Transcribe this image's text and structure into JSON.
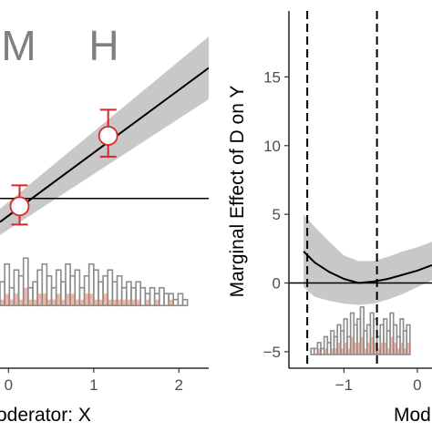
{
  "colors": {
    "line": "#000000",
    "band": "#bebebe",
    "bin_point": "#d62828",
    "histogram_outline": "#8c8c8c",
    "histogram_fill_treated": "#f4b5a2",
    "text_bin_label": "#808080"
  },
  "chart_data": [
    {
      "type": "line",
      "panel": "left",
      "xlabel": "oderator: X",
      "ylabel": "",
      "xlim": [
        -0.1,
        2.35
      ],
      "ylim": [
        -6.5,
        7.6
      ],
      "x_ticks": [
        0,
        1,
        2
      ],
      "x_tick_labels": [
        "0",
        "1",
        "2"
      ],
      "bin_labels": [
        "M",
        "H"
      ],
      "bin_label_x": [
        0.12,
        1.12
      ],
      "series": [
        {
          "role": "fitted-line",
          "x": [
            -0.1,
            2.35
          ],
          "y": [
            -0.9,
            5.0
          ],
          "band_lower": [
            -1.4,
            3.8
          ],
          "band_upper": [
            -0.4,
            6.2
          ]
        }
      ],
      "points": [
        {
          "x": 0.13,
          "y": -0.3,
          "lower": -1.0,
          "upper": 0.5
        },
        {
          "x": 1.17,
          "y": 2.4,
          "lower": 1.6,
          "upper": 3.4
        }
      ],
      "hline_y": 0,
      "histogram": {
        "base_y": -4.1,
        "bin_width": 0.055,
        "total_counts": [
          4,
          7,
          3,
          6,
          5,
          8,
          3,
          4,
          6,
          7,
          5,
          3,
          6,
          4,
          7,
          5,
          6,
          3,
          5,
          7,
          6,
          4,
          5,
          6,
          4,
          5,
          3,
          4,
          3,
          4,
          3,
          2,
          3,
          2,
          3,
          2,
          2,
          1,
          2,
          1
        ],
        "treated_counts": [
          1,
          2,
          1,
          2,
          1,
          3,
          1,
          1,
          2,
          2,
          1,
          1,
          2,
          1,
          2,
          2,
          1,
          1,
          2,
          2,
          1,
          1,
          2,
          1,
          1,
          1,
          1,
          1,
          1,
          1,
          0,
          1,
          0,
          1,
          0,
          0,
          1,
          0,
          0,
          0
        ]
      }
    },
    {
      "type": "line",
      "panel": "right",
      "xlabel": "Mod",
      "ylabel": "Marginal Effect of D on Y",
      "xlim": [
        -1.75,
        0.2
      ],
      "ylim": [
        -6.2,
        19.8
      ],
      "x_ticks": [
        -1,
        0
      ],
      "x_tick_labels": [
        "−1",
        "0"
      ],
      "y_ticks": [
        -5,
        0,
        5,
        10,
        15
      ],
      "y_tick_labels": [
        "−5",
        "0",
        "5",
        "10",
        "15"
      ],
      "series": [
        {
          "role": "marginal-effect",
          "x": [
            -1.55,
            -1.4,
            -1.2,
            -1.0,
            -0.8,
            -0.6,
            -0.4,
            -0.2,
            0.0,
            0.2
          ],
          "y": [
            2.3,
            1.5,
            0.8,
            0.3,
            0.0,
            0.1,
            0.3,
            0.6,
            0.9,
            1.3
          ],
          "band_lower": [
            -0.3,
            -1.0,
            -1.3,
            -1.5,
            -1.6,
            -1.5,
            -1.2,
            -0.8,
            -0.3,
            0.2
          ],
          "band_upper": [
            5.0,
            4.1,
            3.0,
            2.0,
            1.6,
            1.6,
            1.9,
            2.3,
            2.6,
            3.0
          ]
        }
      ],
      "hline_y": 0,
      "vlines_x": [
        -1.5,
        -0.55
      ],
      "histogram": {
        "base_y": -5.2,
        "bin_width": 0.045,
        "total_counts": [
          1,
          1,
          2,
          1,
          3,
          2,
          4,
          3,
          5,
          4,
          6,
          3,
          7,
          5,
          6,
          8,
          4,
          5,
          7,
          6,
          3,
          5,
          6,
          4,
          7,
          5,
          3,
          6,
          4,
          5
        ],
        "treated_counts": [
          0,
          0,
          1,
          0,
          1,
          0,
          1,
          1,
          2,
          1,
          2,
          1,
          3,
          2,
          2,
          3,
          1,
          2,
          3,
          2,
          1,
          2,
          2,
          1,
          3,
          2,
          1,
          2,
          1,
          2
        ]
      }
    }
  ]
}
